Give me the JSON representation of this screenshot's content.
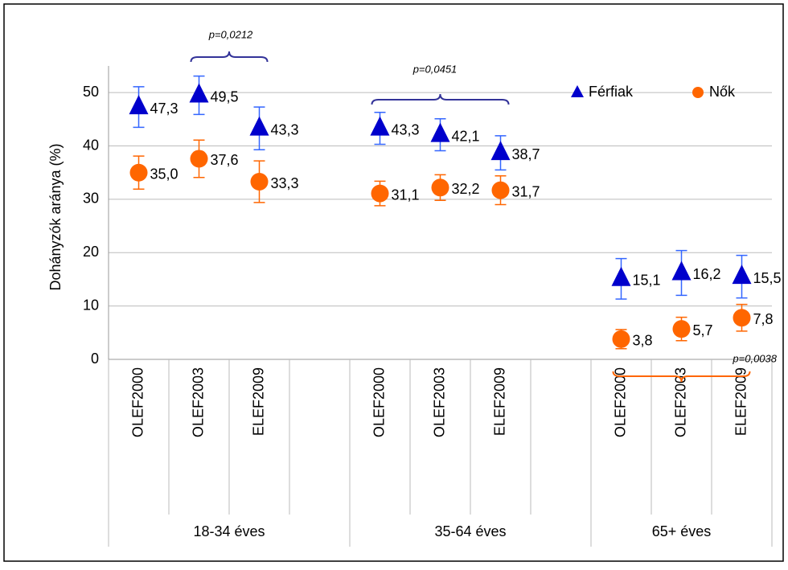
{
  "chart_data": {
    "type": "scatter",
    "y_label": "Dohányzók aránya (%)",
    "categories": [
      "OLEF2000",
      "OLEF2003",
      "ELEF2009",
      null,
      "OLEF2000",
      "OLEF2003",
      "ELEF2009",
      null,
      "OLEF2000",
      "OLEF2003",
      "ELEF2009"
    ],
    "category_groups": [
      "18-34 éves",
      "35-64 éves",
      "65+ éves"
    ],
    "series": [
      {
        "name": "Férfiak",
        "color": "#0000cc",
        "error_color": "#3366ff",
        "marker": "triangle",
        "values": [
          47.3,
          49.5,
          43.3,
          null,
          43.3,
          42.1,
          38.7,
          null,
          15.1,
          16.2,
          15.5
        ],
        "value_labels": [
          "47,3",
          "49,5",
          "43,3",
          null,
          "43,3",
          "42,1",
          "38,7",
          null,
          "15,1",
          "16,2",
          "15,5"
        ],
        "errors": [
          3.8,
          3.6,
          4,
          null,
          3,
          3,
          3.2,
          null,
          3.8,
          4.2,
          4
        ]
      },
      {
        "name": "Nők",
        "color": "#ff6600",
        "error_color": "#ff6600",
        "marker": "circle",
        "values": [
          35.0,
          37.6,
          33.3,
          null,
          31.1,
          32.2,
          31.7,
          null,
          3.8,
          5.7,
          7.8
        ],
        "value_labels": [
          "35,0",
          "37,6",
          "33,3",
          null,
          "31,1",
          "32,2",
          "31,7",
          null,
          "3,8",
          "5,7",
          "7,8"
        ],
        "errors": [
          3.1,
          3.5,
          3.9,
          null,
          2.3,
          2.4,
          2.7,
          null,
          1.8,
          2.2,
          2.5
        ]
      }
    ],
    "annotations": [
      "p=0,0212",
      "p=0,0451",
      "p=0,0038"
    ],
    "ylim": [
      0,
      55
    ],
    "yticks": [
      0,
      10,
      20,
      30,
      40,
      50
    ],
    "grid": true,
    "legend": "upper right"
  }
}
